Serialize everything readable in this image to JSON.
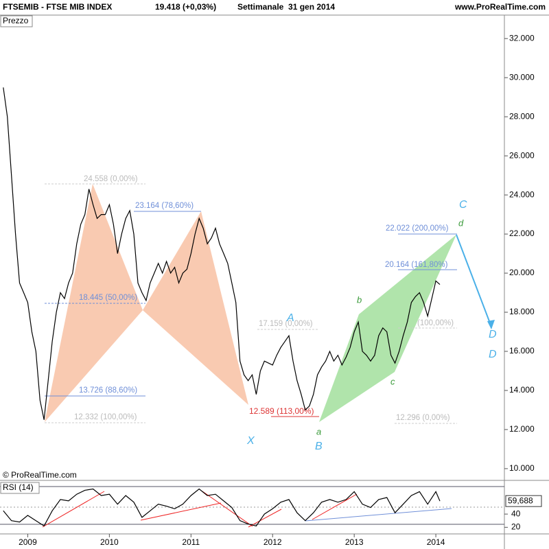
{
  "header": {
    "symbol": "FTSEMIB - FTSE MIB INDEX",
    "quote": "19.418 (+0,03%)",
    "period": "Settimanale  31 gen 2014",
    "site": "www.ProRealTime.com"
  },
  "copyright": "© ProRealTime.com",
  "annotations": {
    "fib_labels": [
      "24.558 (0,00%)",
      "23.164 (78,60%)",
      "18.445 (50,00%)",
      "13.726 (88,60%)",
      "12.332 (100,00%)",
      "17.159 (0,00%)",
      "12.589 (113,00%)",
      "22.022 (200,00%)",
      "20.164 (161,80%)",
      "(100,00%)",
      "12.296 (0,00%)"
    ],
    "wave_labels": [
      "X",
      "A",
      "B",
      "C",
      "D",
      "D",
      "a",
      "b",
      "c",
      "d"
    ]
  },
  "chart_data": [
    {
      "type": "line",
      "title": "Prezzo",
      "color": "#000000",
      "x": [
        2008.7,
        2008.75,
        2008.8,
        2008.85,
        2008.9,
        2008.95,
        2009.0,
        2009.05,
        2009.1,
        2009.15,
        2009.2,
        2009.25,
        2009.3,
        2009.35,
        2009.4,
        2009.45,
        2009.5,
        2009.55,
        2009.6,
        2009.65,
        2009.7,
        2009.75,
        2009.8,
        2009.85,
        2009.9,
        2009.95,
        2010.0,
        2010.05,
        2010.1,
        2010.15,
        2010.2,
        2010.25,
        2010.3,
        2010.35,
        2010.4,
        2010.45,
        2010.5,
        2010.55,
        2010.6,
        2010.65,
        2010.7,
        2010.75,
        2010.8,
        2010.85,
        2010.9,
        2010.95,
        2011.0,
        2011.05,
        2011.1,
        2011.15,
        2011.2,
        2011.25,
        2011.3,
        2011.35,
        2011.4,
        2011.45,
        2011.5,
        2011.55,
        2011.6,
        2011.65,
        2011.7,
        2011.75,
        2011.8,
        2011.85,
        2011.9,
        2012.0,
        2012.05,
        2012.1,
        2012.15,
        2012.2,
        2012.25,
        2012.3,
        2012.35,
        2012.4,
        2012.45,
        2012.5,
        2012.55,
        2012.6,
        2012.65,
        2012.7,
        2012.75,
        2012.8,
        2012.85,
        2012.9,
        2012.95,
        2013.0,
        2013.05,
        2013.1,
        2013.15,
        2013.2,
        2013.25,
        2013.3,
        2013.35,
        2013.4,
        2013.45,
        2013.5,
        2013.55,
        2013.6,
        2013.65,
        2013.7,
        2013.75,
        2013.8,
        2013.85,
        2013.9,
        2013.95,
        2014.0,
        2014.05
      ],
      "values": [
        29500,
        28000,
        25000,
        22000,
        19500,
        19000,
        18500,
        17000,
        16000,
        13500,
        12500,
        14500,
        16500,
        18000,
        19000,
        18700,
        19500,
        20000,
        21500,
        22500,
        23000,
        24300,
        23500,
        22800,
        23000,
        23000,
        23500,
        22500,
        21000,
        22000,
        22800,
        23200,
        22000,
        19500,
        19000,
        18600,
        19500,
        20000,
        20500,
        20000,
        20600,
        20000,
        20300,
        19500,
        20000,
        20200,
        21000,
        22000,
        22800,
        22300,
        21500,
        21800,
        22300,
        21500,
        21000,
        20500,
        19500,
        18500,
        15500,
        14800,
        14500,
        14800,
        13800,
        15000,
        15500,
        15300,
        15800,
        16200,
        16500,
        16800,
        15500,
        14500,
        13800,
        13000,
        13200,
        13800,
        14800,
        15200,
        15500,
        16000,
        15500,
        15800,
        15300,
        15700,
        16200,
        17000,
        17500,
        16000,
        15800,
        15500,
        15800,
        16800,
        17200,
        17000,
        15800,
        15400,
        16000,
        16800,
        17500,
        18500,
        18800,
        19000,
        18500,
        17800,
        18700,
        19600,
        19418
      ],
      "xlim": [
        2008.66,
        2014.84
      ],
      "ylim": [
        9400,
        33200
      ],
      "yticks": [
        {
          "value": 10000,
          "label": "10.000"
        },
        {
          "value": 12000,
          "label": "12.000"
        },
        {
          "value": 14000,
          "label": "14.000"
        },
        {
          "value": 16000,
          "label": "16.000"
        },
        {
          "value": 18000,
          "label": "18.000"
        },
        {
          "value": 20000,
          "label": "20.000"
        },
        {
          "value": 22000,
          "label": "22.000"
        },
        {
          "value": 24000,
          "label": "24.000"
        },
        {
          "value": 26000,
          "label": "26.000"
        },
        {
          "value": 28000,
          "label": "28.000"
        },
        {
          "value": 30000,
          "label": "30.000"
        },
        {
          "value": 32000,
          "label": "32.000"
        }
      ]
    },
    {
      "type": "line",
      "title": "RSI (14)",
      "color": "#000000",
      "x": [
        2008.7,
        2008.8,
        2008.9,
        2009.0,
        2009.1,
        2009.2,
        2009.3,
        2009.4,
        2009.5,
        2009.6,
        2009.7,
        2009.8,
        2009.9,
        2010.0,
        2010.1,
        2010.2,
        2010.3,
        2010.4,
        2010.5,
        2010.6,
        2010.7,
        2010.8,
        2010.9,
        2011.0,
        2011.1,
        2011.2,
        2011.3,
        2011.4,
        2011.5,
        2011.6,
        2011.7,
        2011.8,
        2011.9,
        2012.0,
        2012.1,
        2012.2,
        2012.3,
        2012.4,
        2012.5,
        2012.6,
        2012.7,
        2012.8,
        2012.9,
        2013.0,
        2013.1,
        2013.2,
        2013.3,
        2013.4,
        2013.5,
        2013.6,
        2013.7,
        2013.8,
        2013.9,
        2014.0,
        2014.05
      ],
      "values": [
        45,
        30,
        28,
        38,
        30,
        22,
        45,
        62,
        60,
        70,
        76,
        78,
        68,
        70,
        55,
        68,
        58,
        35,
        45,
        55,
        52,
        48,
        55,
        68,
        78,
        68,
        70,
        60,
        50,
        30,
        25,
        22,
        40,
        48,
        58,
        62,
        42,
        30,
        42,
        58,
        62,
        58,
        62,
        74,
        55,
        50,
        62,
        65,
        42,
        55,
        68,
        74,
        55,
        74,
        59.688
      ],
      "value_labels": {
        "last": "59,688"
      },
      "xlim": [
        2008.66,
        2014.84
      ],
      "ylim": [
        10,
        91
      ],
      "yticks": [
        20,
        40
      ],
      "xticks": [
        2009,
        2010,
        2011,
        2012,
        2013,
        2014
      ]
    }
  ]
}
